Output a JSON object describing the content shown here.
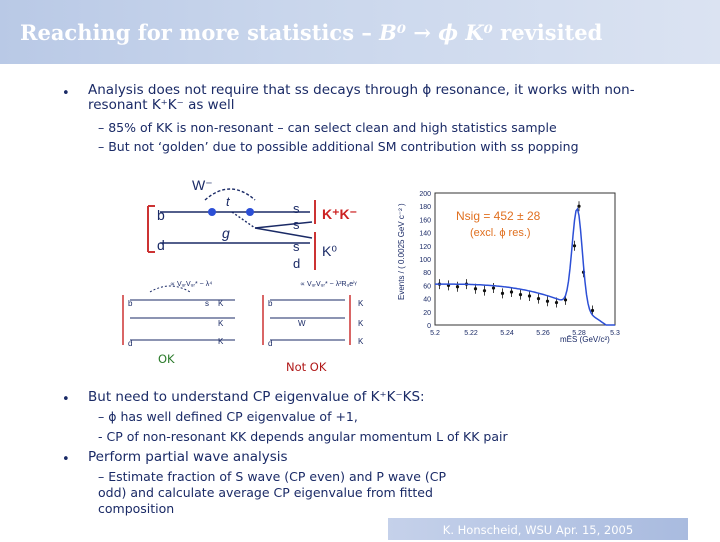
{
  "header": {
    "title_main": "Reaching for more statistics – ",
    "title_formula": "B⁰ → ϕ K⁰",
    "title_end": " revisited"
  },
  "bullets": [
    {
      "symbol": "•",
      "text": "Analysis does not require that ss decays through ϕ resonance, it works with non-resonant K⁺K⁻ as well",
      "subs": [
        "– 85% of KK is non-resonant – can select clean and high statistics sample",
        "– But not ‘golden’ due to possible additional SM contribution with ss popping"
      ]
    },
    {
      "symbol": "•",
      "text": "But need to understand CP eigenvalue of K⁺K⁻KS:",
      "subs": [
        "– ϕ has well defined CP eigenvalue of +1,",
        "- CP of non-resonant KK depends angular momentum L of KK pair"
      ]
    },
    {
      "symbol": "•",
      "text": "Perform partial wave analysis",
      "subs": [
        "– Estimate fraction of S wave (CP even) and P wave (CP odd) and calculate average CP eigenvalue from fitted composition"
      ]
    }
  ],
  "figure": {
    "main_diagram": {
      "W": "W⁻",
      "t": "t",
      "b": "b",
      "d": "d",
      "g": "g",
      "s1": "s",
      "s2": "s",
      "s3": "s",
      "d2": "d",
      "KK": "K⁺K⁻",
      "K0": "K⁰"
    },
    "ok_label": "OK",
    "notok_label": "Not OK",
    "small_left_label": "∝ VᵤᵣVᵤᵣ* ~ λ⁴",
    "small_right_label": "∝ VᵤᵣVᵤᵣ* ~ λ²Rᵤeⁱᵞ",
    "annotation_nsig": "Nsig = 452 ± 28",
    "annotation_excl": "(excl. ϕ res.)",
    "ylabel": "Events / ( 0.0025 GeV c⁻² )",
    "xlabel": "mĒS (GeV/c²)",
    "color_accent": "#1a2a66",
    "color_annotation": "#e07020"
  },
  "chart_data": {
    "type": "scatter",
    "title": "",
    "xlabel": "mES (GeV/c²)",
    "ylabel": "Events / ( 0.0025 GeV c⁻² )",
    "xlim": [
      5.2,
      5.3
    ],
    "ylim": [
      0,
      200
    ],
    "x_ticks": [
      "5.2",
      "5.22",
      "5.24",
      "5.26",
      "5.28",
      "5.3"
    ],
    "y_ticks": [
      "0",
      "20",
      "40",
      "60",
      "80",
      "100",
      "120",
      "140",
      "160",
      "180",
      "200"
    ],
    "x": [
      5.2025,
      5.2075,
      5.2125,
      5.2175,
      5.2225,
      5.2275,
      5.2325,
      5.2375,
      5.2425,
      5.2475,
      5.2525,
      5.2575,
      5.2625,
      5.2675,
      5.2725,
      5.2775,
      5.28,
      5.2825,
      5.2875
    ],
    "values": [
      62,
      60,
      58,
      62,
      55,
      52,
      56,
      48,
      50,
      46,
      44,
      40,
      36,
      34,
      38,
      120,
      180,
      80,
      22
    ],
    "fit_peak_x": 5.279
  },
  "footer": {
    "text": "K. Honscheid, WSU  Apr. 15, 2005"
  }
}
